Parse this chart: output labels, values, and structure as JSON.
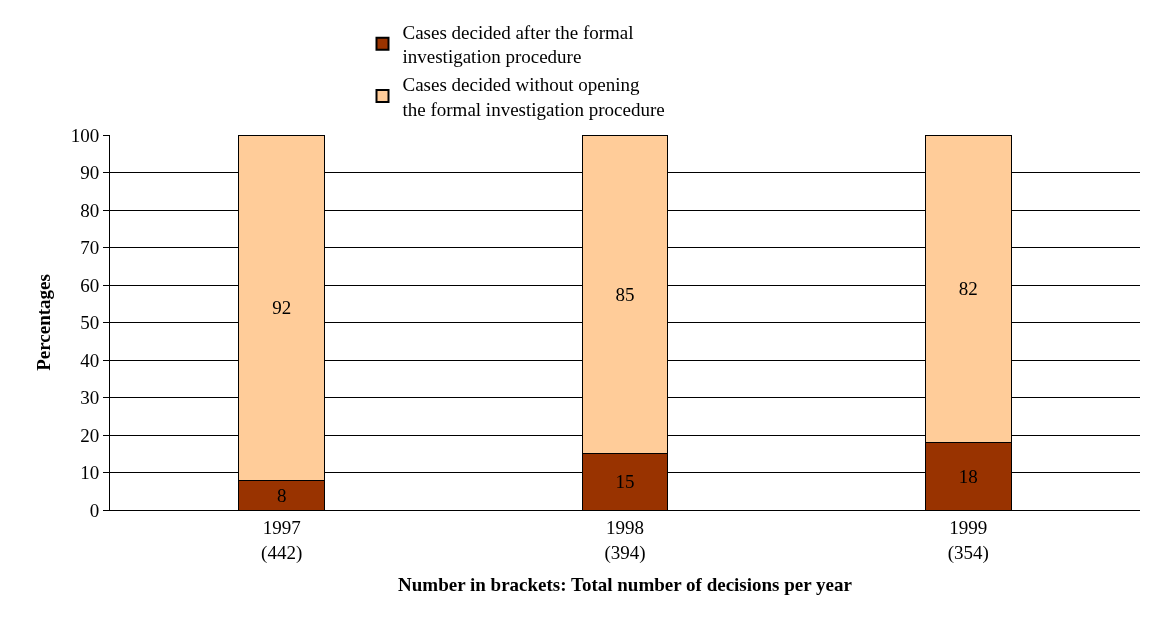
{
  "chart_data": {
    "type": "bar",
    "stacked": true,
    "ylabel": "Percentages",
    "xlabel": "Number in brackets: Total number of decisions per year",
    "categories": [
      "1997\n(442)",
      "1998\n(394)",
      "1999\n(354)"
    ],
    "series": [
      {
        "name": "Cases decided after the formal\ninvestigation procedure",
        "color": "#993300",
        "values": [
          8,
          15,
          18
        ]
      },
      {
        "name": "Cases decided without opening\nthe formal investigation procedure",
        "color": "#ffcc99",
        "values": [
          92,
          85,
          82
        ]
      }
    ],
    "ylim": [
      0,
      100
    ],
    "yticks": [
      0,
      10,
      20,
      30,
      40,
      50,
      60,
      70,
      80,
      90,
      100
    ],
    "grid": "y",
    "legend": "top",
    "data_labels": true
  }
}
